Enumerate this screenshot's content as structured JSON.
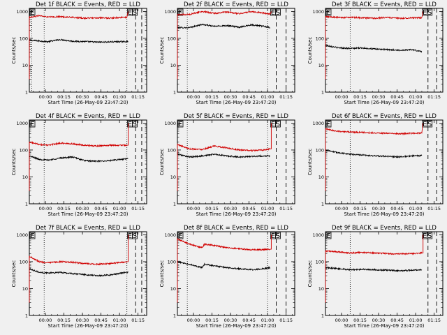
{
  "figure": {
    "xlabel": "Start Time (26-May-09 23:47:20)",
    "ylabel": "Counts/sec",
    "xtick_labels": [
      "00:00",
      "00:15",
      "00:30",
      "00:45",
      "01:00",
      "01:15"
    ],
    "ytick_labels": [
      "1",
      "10",
      "100",
      "1000"
    ],
    "flag_labels": [
      "E",
      "S"
    ],
    "colors": {
      "background": "#f0f0f0",
      "events": "#000000",
      "lld": "#d00000"
    }
  },
  "chart_data": [
    {
      "type": "line",
      "title": "Det 1f BLACK = Events, RED = LLD",
      "xlabel": "Start Time (26-May-09 23:47:20)",
      "ylabel": "Counts/sec",
      "y_scale": "log",
      "ylim": [
        1,
        1300
      ],
      "xlim_minutes": [
        0,
        95
      ],
      "dotted_vlines_min": [
        2,
        12,
        79
      ],
      "dashed_vlines_min": [
        86,
        91
      ],
      "series": [
        {
          "name": "Events",
          "color": "#000000",
          "x": [
            0,
            8,
            15,
            25,
            35,
            45,
            55,
            65,
            75,
            80
          ],
          "y": [
            85,
            80,
            75,
            90,
            78,
            76,
            72,
            74,
            75,
            76
          ]
        },
        {
          "name": "LLD",
          "color": "#d00000",
          "x": [
            0,
            8,
            15,
            25,
            35,
            45,
            55,
            65,
            75,
            79,
            80
          ],
          "y": [
            600,
            700,
            620,
            640,
            600,
            560,
            580,
            560,
            600,
            600,
            1000
          ]
        }
      ]
    },
    {
      "type": "line",
      "title": "Det 2f BLACK = Events, RED = LLD",
      "xlabel": "Start Time (26-May-09 23:47:20)",
      "ylabel": "Counts/sec",
      "y_scale": "log",
      "ylim": [
        1,
        1300
      ],
      "xlim_minutes": [
        0,
        95
      ],
      "dotted_vlines_min": [
        8,
        73
      ],
      "dashed_vlines_min": [
        80,
        88
      ],
      "series": [
        {
          "name": "Events",
          "color": "#000000",
          "x": [
            0,
            10,
            20,
            30,
            40,
            50,
            60,
            70,
            75
          ],
          "y": [
            250,
            250,
            330,
            280,
            300,
            260,
            320,
            280,
            250
          ]
        },
        {
          "name": "LLD",
          "color": "#d00000",
          "x": [
            0,
            10,
            20,
            30,
            40,
            50,
            60,
            70,
            75,
            76
          ],
          "y": [
            750,
            780,
            1000,
            850,
            950,
            820,
            1000,
            870,
            800,
            1000
          ]
        }
      ]
    },
    {
      "type": "line",
      "title": "Det 3f BLACK = Events, RED = LLD",
      "xlabel": "Start Time (26-May-09 23:47:20)",
      "ylabel": "Counts/sec",
      "y_scale": "log",
      "ylim": [
        1,
        1300
      ],
      "xlim_minutes": [
        0,
        95
      ],
      "dotted_vlines_min": [
        20
      ],
      "dashed_vlines_min": [
        83,
        90
      ],
      "series": [
        {
          "name": "Events",
          "color": "#000000",
          "x": [
            0,
            10,
            20,
            30,
            40,
            50,
            60,
            70,
            78
          ],
          "y": [
            55,
            45,
            42,
            44,
            40,
            38,
            36,
            38,
            32
          ]
        },
        {
          "name": "LLD",
          "color": "#d00000",
          "x": [
            0,
            10,
            20,
            30,
            40,
            50,
            60,
            70,
            78,
            79
          ],
          "y": [
            640,
            600,
            600,
            580,
            560,
            600,
            550,
            580,
            580,
            1000
          ]
        }
      ]
    },
    {
      "type": "line",
      "title": "Det 4f BLACK = Events, RED = LLD",
      "xlabel": "Start Time (26-May-09 23:47:20)",
      "ylabel": "Counts/sec",
      "y_scale": "log",
      "ylim": [
        1,
        1300
      ],
      "xlim_minutes": [
        0,
        95
      ],
      "dotted_vlines_min": [
        12,
        79
      ],
      "dashed_vlines_min": [
        86,
        91
      ],
      "series": [
        {
          "name": "Events",
          "color": "#000000",
          "x": [
            0,
            8,
            15,
            25,
            35,
            45,
            55,
            65,
            75,
            80
          ],
          "y": [
            60,
            45,
            42,
            50,
            55,
            40,
            38,
            40,
            45,
            48
          ]
        },
        {
          "name": "LLD",
          "color": "#d00000",
          "x": [
            0,
            8,
            15,
            25,
            35,
            45,
            55,
            65,
            75,
            79,
            80
          ],
          "y": [
            200,
            160,
            150,
            180,
            170,
            150,
            140,
            150,
            150,
            150,
            1000
          ]
        }
      ]
    },
    {
      "type": "line",
      "title": "Det 5f BLACK = Events, RED = LLD",
      "xlabel": "Start Time (26-May-09 23:47:20)",
      "ylabel": "Counts/sec",
      "y_scale": "log",
      "ylim": [
        1,
        1300
      ],
      "xlim_minutes": [
        0,
        95
      ],
      "dotted_vlines_min": [
        8,
        73
      ],
      "dashed_vlines_min": [
        80,
        88
      ],
      "series": [
        {
          "name": "Events",
          "color": "#000000",
          "x": [
            0,
            10,
            20,
            30,
            40,
            50,
            60,
            70,
            75
          ],
          "y": [
            70,
            55,
            60,
            70,
            60,
            55,
            58,
            60,
            60
          ]
        },
        {
          "name": "LLD",
          "color": "#d00000",
          "x": [
            0,
            10,
            20,
            30,
            40,
            50,
            60,
            70,
            75,
            76
          ],
          "y": [
            160,
            110,
            105,
            140,
            120,
            100,
            95,
            100,
            110,
            1000
          ]
        }
      ]
    },
    {
      "type": "line",
      "title": "Det 6f BLACK = Events, RED = LLD",
      "xlabel": "Start Time (26-May-09 23:47:20)",
      "ylabel": "Counts/sec",
      "y_scale": "log",
      "ylim": [
        1,
        1300
      ],
      "xlim_minutes": [
        0,
        95
      ],
      "dotted_vlines_min": [
        20
      ],
      "dashed_vlines_min": [
        83,
        90
      ],
      "series": [
        {
          "name": "Events",
          "color": "#000000",
          "x": [
            0,
            10,
            20,
            30,
            40,
            50,
            60,
            70,
            78
          ],
          "y": [
            100,
            80,
            70,
            65,
            60,
            58,
            55,
            60,
            62
          ]
        },
        {
          "name": "LLD",
          "color": "#d00000",
          "x": [
            0,
            10,
            20,
            30,
            40,
            50,
            60,
            70,
            78,
            79
          ],
          "y": [
            600,
            500,
            470,
            450,
            430,
            420,
            400,
            420,
            430,
            1000
          ]
        }
      ]
    },
    {
      "type": "line",
      "title": "Det 7f BLACK = Events, RED = LLD",
      "xlabel": "Start Time (26-May-09 23:47:20)",
      "ylabel": "Counts/sec",
      "y_scale": "log",
      "ylim": [
        1,
        1300
      ],
      "xlim_minutes": [
        0,
        95
      ],
      "dotted_vlines_min": [
        12,
        79
      ],
      "dashed_vlines_min": [
        86,
        91
      ],
      "series": [
        {
          "name": "Events",
          "color": "#000000",
          "x": [
            0,
            8,
            15,
            25,
            35,
            45,
            55,
            65,
            75,
            80
          ],
          "y": [
            55,
            40,
            38,
            40,
            36,
            33,
            30,
            32,
            38,
            40
          ]
        },
        {
          "name": "LLD",
          "color": "#d00000",
          "x": [
            0,
            8,
            15,
            25,
            35,
            45,
            55,
            65,
            75,
            79,
            80
          ],
          "y": [
            160,
            100,
            90,
            100,
            95,
            85,
            80,
            85,
            95,
            100,
            1000
          ]
        }
      ]
    },
    {
      "type": "line",
      "title": "Det 8f BLACK = Events, RED = LLD",
      "xlabel": "Start Time (26-May-09 23:47:20)",
      "ylabel": "Counts/sec",
      "y_scale": "log",
      "ylim": [
        1,
        1300
      ],
      "xlim_minutes": [
        0,
        95
      ],
      "dotted_vlines_min": [
        8,
        73
      ],
      "dashed_vlines_min": [
        80,
        88
      ],
      "series": [
        {
          "name": "Events",
          "color": "#000000",
          "x": [
            0,
            10,
            20,
            22,
            30,
            40,
            50,
            60,
            70,
            75
          ],
          "y": [
            100,
            80,
            60,
            80,
            70,
            60,
            55,
            50,
            55,
            60
          ]
        },
        {
          "name": "LLD",
          "color": "#d00000",
          "x": [
            0,
            10,
            20,
            22,
            30,
            40,
            50,
            60,
            70,
            75,
            76
          ],
          "y": [
            700,
            450,
            330,
            450,
            400,
            330,
            300,
            280,
            280,
            290,
            1000
          ]
        }
      ]
    },
    {
      "type": "line",
      "title": "Det 9f BLACK = Events, RED = LLD",
      "xlabel": "Start Time (26-May-09 23:47:20)",
      "ylabel": "Counts/sec",
      "y_scale": "log",
      "ylim": [
        1,
        1300
      ],
      "xlim_minutes": [
        0,
        95
      ],
      "dotted_vlines_min": [
        20
      ],
      "dashed_vlines_min": [
        83,
        90
      ],
      "series": [
        {
          "name": "Events",
          "color": "#000000",
          "x": [
            0,
            10,
            20,
            30,
            40,
            50,
            60,
            70,
            78
          ],
          "y": [
            60,
            55,
            50,
            52,
            50,
            48,
            46,
            48,
            50
          ]
        },
        {
          "name": "LLD",
          "color": "#d00000",
          "x": [
            0,
            10,
            20,
            30,
            40,
            50,
            60,
            70,
            78,
            79
          ],
          "y": [
            250,
            230,
            210,
            220,
            210,
            200,
            195,
            200,
            210,
            1000
          ]
        }
      ]
    }
  ]
}
